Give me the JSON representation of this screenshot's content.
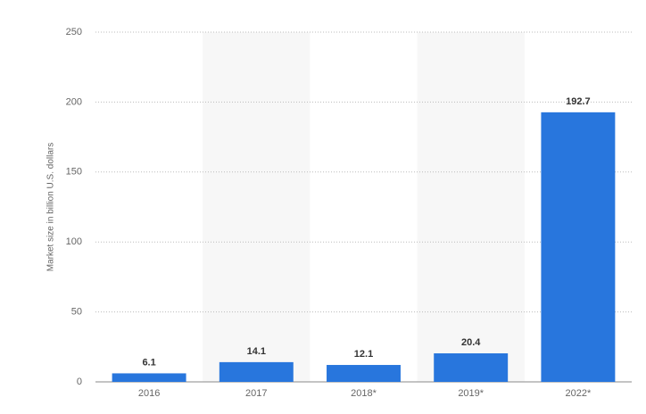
{
  "chart_data": {
    "type": "bar",
    "y_label": "Market size in billion U.S. dollars",
    "categories": [
      "2016",
      "2017",
      "2018*",
      "2019*",
      "2022*"
    ],
    "values": [
      6.1,
      14.1,
      12.1,
      20.4,
      192.7
    ],
    "color": "#2876dd",
    "ylim": [
      0,
      250
    ],
    "yticks": [
      0,
      50,
      100,
      150,
      200,
      250
    ],
    "grid": true
  }
}
